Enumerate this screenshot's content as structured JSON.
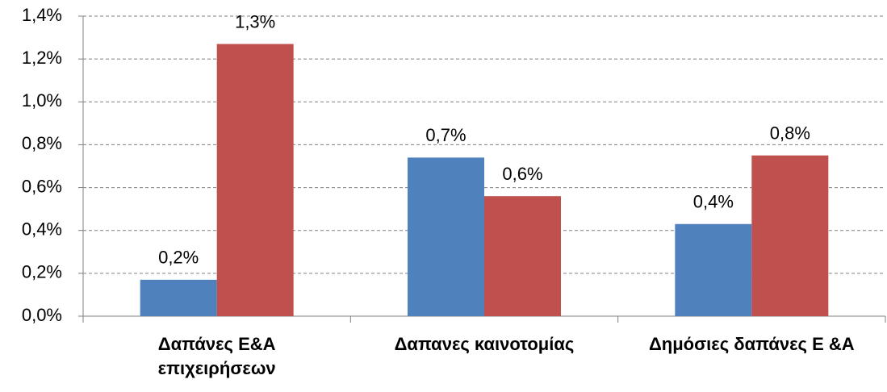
{
  "chart_data": {
    "type": "bar",
    "categories": [
      "Δαπάνες Ε&Α\nεπιχειρήσεων",
      "Δαπανες καινοτομίας",
      "Δημόσιες δαπάνες Ε &Α"
    ],
    "series": [
      {
        "color": "#4f81bd",
        "values": [
          0.17,
          0.74,
          0.43
        ],
        "value_labels": [
          "0,2%",
          "0,7%",
          "0,4%"
        ]
      },
      {
        "color": "#c0504d",
        "values": [
          1.27,
          0.56,
          0.75
        ],
        "value_labels": [
          "1,3%",
          "0,6%",
          "0,8%"
        ]
      }
    ],
    "ylim": [
      0,
      1.4
    ],
    "yticks": [
      {
        "value": 0,
        "label": "0,0%"
      },
      {
        "value": 0.2,
        "label": "0,2%"
      },
      {
        "value": 0.4,
        "label": "0,4%"
      },
      {
        "value": 0.6,
        "label": "0,6%"
      },
      {
        "value": 0.8,
        "label": "0,8%"
      },
      {
        "value": 1.0,
        "label": "1,0%"
      },
      {
        "value": 1.2,
        "label": "1,2%"
      },
      {
        "value": 1.4,
        "label": "1,4%"
      }
    ],
    "grid": true
  }
}
